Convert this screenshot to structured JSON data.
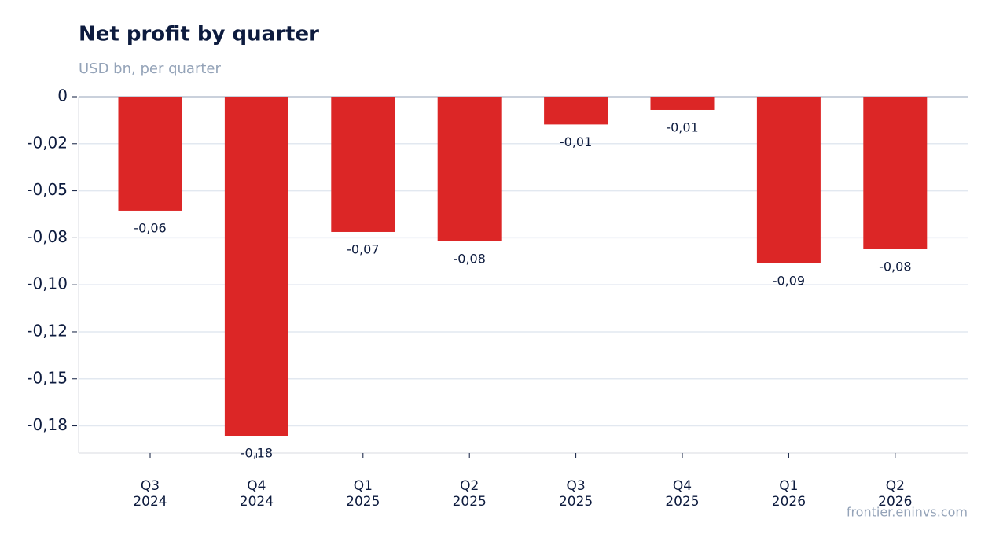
{
  "chart_data": {
    "type": "bar",
    "title": "Net profit by quarter",
    "subtitle": "USD bn, per quarter",
    "source": "frontier.eninvs.com",
    "categories": [
      "Q3 2024",
      "Q4 2024",
      "Q1 2025",
      "Q2 2025",
      "Q3 2025",
      "Q4 2025",
      "Q1 2026",
      "Q2 2026"
    ],
    "values": [
      -0.0606,
      -0.1802,
      -0.0719,
      -0.0769,
      -0.0148,
      -0.0071,
      -0.0886,
      -0.0811
    ],
    "value_labels": [
      "-0,06",
      "-0,18",
      "-0,07",
      "-0,08",
      "-0,01",
      "-0,01",
      "-0,09",
      "-0,08"
    ],
    "color": "#dc2626",
    "ylim": [
      -0.1894,
      0
    ],
    "yticks": [
      0,
      {
        "value": -0.025,
        "label": "-0,02"
      },
      {
        "value": -0.05,
        "label": "-0,05"
      },
      {
        "value": -0.075,
        "label": "-0,08"
      },
      {
        "value": -0.1,
        "label": "-0,10"
      },
      {
        "value": -0.125,
        "label": "-0,12"
      },
      {
        "value": -0.15,
        "label": "-0,15"
      },
      {
        "value": -0.175,
        "label": "-0,18"
      }
    ],
    "grid": true
  }
}
